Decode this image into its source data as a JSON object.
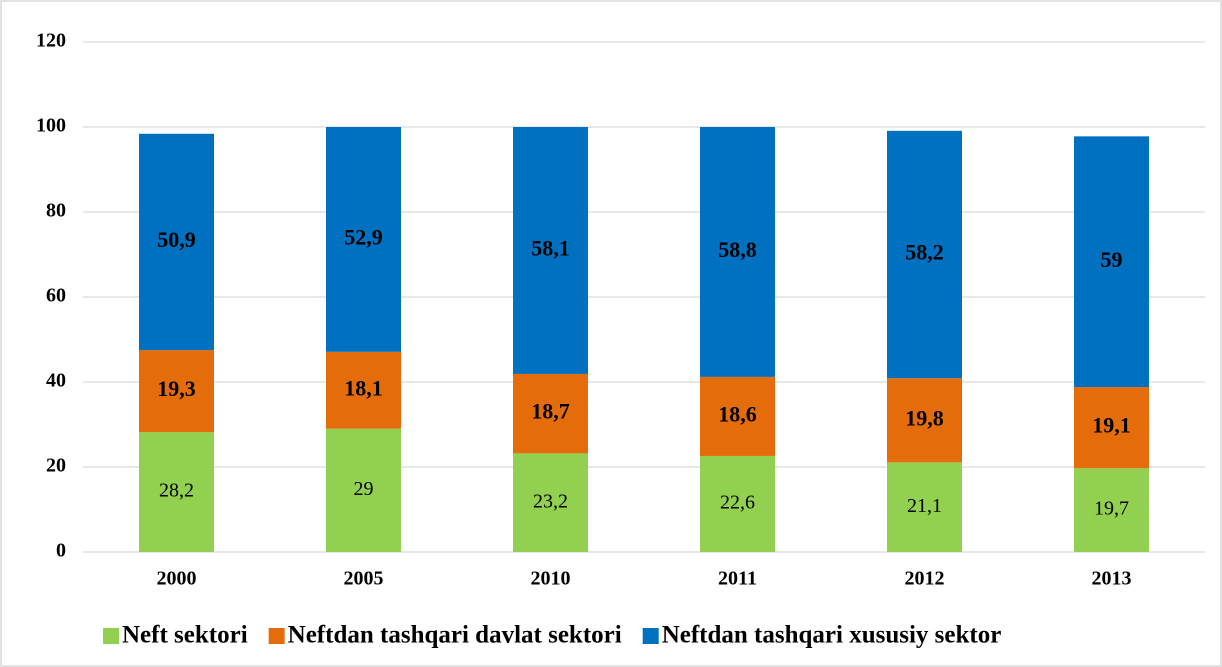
{
  "chart_data": {
    "type": "stacked_bar",
    "categories": [
      "2000",
      "2005",
      "2010",
      "2011",
      "2012",
      "2013"
    ],
    "series": [
      {
        "name": "Neft sektori",
        "color": "#92d050",
        "values": [
          28.2,
          29,
          23.2,
          22.6,
          21.1,
          19.7
        ],
        "value_labels": [
          "28,2",
          "29",
          "23,2",
          "22,6",
          "21,1",
          "19,7"
        ]
      },
      {
        "name": "Neftdan tashqari davlat sektori",
        "color": "#e46c0a",
        "values": [
          19.3,
          18.1,
          18.7,
          18.6,
          19.8,
          19.1
        ],
        "value_labels": [
          "19,3",
          "18,1",
          "18,7",
          "18,6",
          "19,8",
          "19,1"
        ]
      },
      {
        "name": "Neftdan tashqari xususiy sektor",
        "color": "#0070c0",
        "values": [
          50.9,
          52.9,
          58.1,
          58.8,
          58.2,
          59
        ],
        "value_labels": [
          "50,9",
          "52,9",
          "58,1",
          "58,8",
          "58,2",
          "59"
        ]
      }
    ],
    "ylim": [
      0,
      120
    ],
    "yticks": [
      0,
      20,
      40,
      60,
      80,
      100,
      120
    ],
    "grid": true,
    "legend": "bottom"
  }
}
